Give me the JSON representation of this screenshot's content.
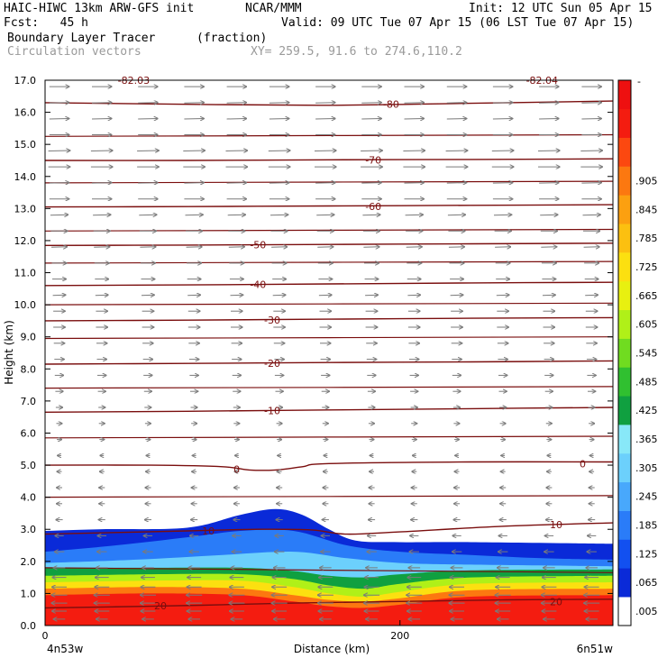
{
  "header": {
    "model_line": "HAIC-HIWC 13km ARW-GFS init",
    "org": "NCAR/MMM",
    "init": "Init: 12 UTC Sun 05 Apr 15",
    "fcst": "Fcst:   45 h",
    "valid": "Valid: 09 UTC Tue 07 Apr 15 (06 LST Tue 07 Apr 15)",
    "field": "Boundary Layer Tracer",
    "field_units": "(fraction)",
    "vectors": "Circulation vectors",
    "xy": "XY= 259.5, 91.6 to 274.6,110.2"
  },
  "chart_data": {
    "type": "heatmap",
    "xlabel": "Distance (km)",
    "ylabel": "Height (km)",
    "xlim": [
      0,
      320
    ],
    "ylim": [
      0.0,
      17.0
    ],
    "x_ticks": [
      {
        "value": 0,
        "label": "0"
      },
      {
        "value": 200,
        "label": "200"
      }
    ],
    "y_ticks": [
      {
        "value": 0.0,
        "label": "0.0"
      },
      {
        "value": 1.0,
        "label": "1.0"
      },
      {
        "value": 2.0,
        "label": "2.0"
      },
      {
        "value": 3.0,
        "label": "3.0"
      },
      {
        "value": 4.0,
        "label": "4.0"
      },
      {
        "value": 5.0,
        "label": "5.0"
      },
      {
        "value": 6.0,
        "label": "6.0"
      },
      {
        "value": 7.0,
        "label": "7.0"
      },
      {
        "value": 8.0,
        "label": "8.0"
      },
      {
        "value": 9.0,
        "label": "9.0"
      },
      {
        "value": 10.0,
        "label": "10.0"
      },
      {
        "value": 11.0,
        "label": "11.0"
      },
      {
        "value": 12.0,
        "label": "12.0"
      },
      {
        "value": 13.0,
        "label": "13.0"
      },
      {
        "value": 14.0,
        "label": "14.0"
      },
      {
        "value": 15.0,
        "label": "15.0"
      },
      {
        "value": 16.0,
        "label": "16.0"
      },
      {
        "value": 17.0,
        "label": "17.0"
      }
    ],
    "left_endpoint": "4n53w",
    "right_endpoint": "6n51w",
    "colorbar": {
      "labels": [
        ".005",
        ".065",
        ".125",
        ".185",
        ".245",
        ".305",
        ".365",
        ".425",
        ".485",
        ".545",
        ".605",
        ".665",
        ".725",
        ".785",
        ".845",
        ".905"
      ],
      "top_label": "-",
      "colors": [
        "#ffffff",
        "#0a2ad8",
        "#1250f0",
        "#2a7cf8",
        "#48a8fc",
        "#6cd0fc",
        "#88e8f8",
        "#10a040",
        "#30c030",
        "#70dc20",
        "#b0f018",
        "#e8f010",
        "#fce010",
        "#fcc010",
        "#fca010",
        "#fc7810",
        "#fc4810",
        "#f41c10",
        "#ee1010"
      ]
    },
    "tracer_layers": [
      {
        "value": 0.07,
        "color": "#0a2ad8",
        "top": [
          [
            0,
            2.95
          ],
          [
            30,
            3.0
          ],
          [
            80,
            3.05
          ],
          [
            110,
            3.45
          ],
          [
            130,
            3.63
          ],
          [
            145,
            3.45
          ],
          [
            160,
            3.0
          ],
          [
            175,
            2.65
          ],
          [
            200,
            2.6
          ],
          [
            240,
            2.6
          ],
          [
            320,
            2.55
          ]
        ]
      },
      {
        "value": 0.13,
        "color": "#2a7cf8",
        "top": [
          [
            0,
            2.3
          ],
          [
            40,
            2.5
          ],
          [
            80,
            2.75
          ],
          [
            110,
            2.95
          ],
          [
            140,
            2.95
          ],
          [
            170,
            2.5
          ],
          [
            200,
            2.3
          ],
          [
            240,
            2.2
          ],
          [
            280,
            2.1
          ],
          [
            320,
            2.05
          ]
        ]
      },
      {
        "value": 0.2,
        "color": "#6cd0fc",
        "top": [
          [
            0,
            1.95
          ],
          [
            50,
            2.05
          ],
          [
            100,
            2.2
          ],
          [
            140,
            2.3
          ],
          [
            170,
            2.1
          ],
          [
            200,
            1.95
          ],
          [
            240,
            1.9
          ],
          [
            320,
            1.85
          ]
        ]
      },
      {
        "value": 0.4,
        "color": "#10a040",
        "top": [
          [
            0,
            1.8
          ],
          [
            60,
            1.8
          ],
          [
            110,
            1.8
          ],
          [
            140,
            1.7
          ],
          [
            160,
            1.55
          ],
          [
            180,
            1.5
          ],
          [
            200,
            1.6
          ],
          [
            240,
            1.72
          ],
          [
            320,
            1.75
          ]
        ]
      },
      {
        "value": 0.55,
        "color": "#b0f018",
        "top": [
          [
            0,
            1.55
          ],
          [
            60,
            1.6
          ],
          [
            110,
            1.6
          ],
          [
            140,
            1.45
          ],
          [
            160,
            1.25
          ],
          [
            180,
            1.15
          ],
          [
            200,
            1.3
          ],
          [
            240,
            1.5
          ],
          [
            320,
            1.55
          ]
        ]
      },
      {
        "value": 0.7,
        "color": "#fce010",
        "top": [
          [
            0,
            1.35
          ],
          [
            60,
            1.4
          ],
          [
            110,
            1.4
          ],
          [
            140,
            1.2
          ],
          [
            160,
            1.0
          ],
          [
            180,
            0.9
          ],
          [
            200,
            1.05
          ],
          [
            240,
            1.3
          ],
          [
            320,
            1.35
          ]
        ]
      },
      {
        "value": 0.85,
        "color": "#fc7810",
        "top": [
          [
            0,
            1.15
          ],
          [
            60,
            1.2
          ],
          [
            110,
            1.15
          ],
          [
            140,
            0.95
          ],
          [
            160,
            0.8
          ],
          [
            180,
            0.75
          ],
          [
            200,
            0.85
          ],
          [
            240,
            1.1
          ],
          [
            320,
            1.15
          ]
        ]
      },
      {
        "value": 0.95,
        "color": "#f41c10",
        "top": [
          [
            0,
            0.95
          ],
          [
            60,
            1.0
          ],
          [
            110,
            0.95
          ],
          [
            140,
            0.75
          ],
          [
            160,
            0.6
          ],
          [
            180,
            0.55
          ],
          [
            200,
            0.65
          ],
          [
            240,
            0.9
          ],
          [
            320,
            0.95
          ]
        ]
      }
    ],
    "temperature_contours": [
      {
        "value": 20,
        "label": "20",
        "points": [
          [
            0,
            0.55
          ],
          [
            60,
            0.6
          ],
          [
            100,
            0.65
          ],
          [
            140,
            0.7
          ],
          [
            200,
            0.75
          ],
          [
            260,
            0.8
          ],
          [
            320,
            0.82
          ]
        ],
        "label_at": [
          [
            65,
            0.62
          ],
          [
            288,
            0.75
          ]
        ]
      },
      {
        "value": 10,
        "label": "10",
        "points": [
          [
            0,
            2.85
          ],
          [
            80,
            2.95
          ],
          [
            120,
            3.0
          ],
          [
            150,
            2.98
          ],
          [
            170,
            2.85
          ],
          [
            200,
            2.92
          ],
          [
            260,
            3.1
          ],
          [
            320,
            3.2
          ]
        ],
        "label_at": [
          [
            92,
            2.95
          ],
          [
            288,
            3.15
          ]
        ]
      },
      {
        "value": 0,
        "label": "0",
        "points": [
          [
            0,
            5.0
          ],
          [
            60,
            5.0
          ],
          [
            100,
            4.95
          ],
          [
            115,
            4.85
          ],
          [
            130,
            4.85
          ],
          [
            145,
            4.95
          ],
          [
            160,
            5.05
          ],
          [
            240,
            5.1
          ],
          [
            320,
            5.1
          ]
        ],
        "label_at": [
          [
            108,
            4.88
          ],
          [
            303,
            5.05
          ]
        ]
      },
      {
        "value": -10,
        "label": "-10",
        "points": [
          [
            0,
            6.65
          ],
          [
            80,
            6.68
          ],
          [
            160,
            6.72
          ],
          [
            240,
            6.76
          ],
          [
            320,
            6.8
          ]
        ],
        "label_at": [
          [
            128,
            6.7
          ]
        ]
      },
      {
        "value": -20,
        "label": "-20",
        "points": [
          [
            0,
            8.15
          ],
          [
            80,
            8.17
          ],
          [
            160,
            8.2
          ],
          [
            240,
            8.22
          ],
          [
            320,
            8.25
          ]
        ],
        "label_at": [
          [
            128,
            8.18
          ]
        ]
      },
      {
        "value": -30,
        "label": "-30",
        "points": [
          [
            0,
            9.5
          ],
          [
            80,
            9.52
          ],
          [
            160,
            9.55
          ],
          [
            240,
            9.58
          ],
          [
            320,
            9.6
          ]
        ],
        "label_at": [
          [
            128,
            9.53
          ]
        ]
      },
      {
        "value": -40,
        "label": "-40",
        "points": [
          [
            0,
            10.6
          ],
          [
            80,
            10.62
          ],
          [
            160,
            10.65
          ],
          [
            240,
            10.68
          ],
          [
            320,
            10.7
          ]
        ],
        "label_at": [
          [
            120,
            10.63
          ]
        ]
      },
      {
        "value": -50,
        "label": "-50",
        "points": [
          [
            0,
            11.85
          ],
          [
            80,
            11.86
          ],
          [
            160,
            11.88
          ],
          [
            240,
            11.9
          ],
          [
            320,
            11.92
          ]
        ],
        "label_at": [
          [
            120,
            11.87
          ]
        ]
      },
      {
        "value": -60,
        "label": "-60",
        "points": [
          [
            0,
            13.05
          ],
          [
            80,
            13.06
          ],
          [
            160,
            13.08
          ],
          [
            240,
            13.1
          ],
          [
            320,
            13.12
          ]
        ],
        "label_at": [
          [
            185,
            13.07
          ]
        ]
      },
      {
        "value": -70,
        "label": "-70",
        "points": [
          [
            0,
            14.5
          ],
          [
            80,
            14.5
          ],
          [
            160,
            14.52
          ],
          [
            240,
            14.53
          ],
          [
            320,
            14.55
          ]
        ],
        "label_at": [
          [
            185,
            14.52
          ]
        ]
      },
      {
        "value": -80,
        "label": "-80",
        "points": [
          [
            0,
            16.3
          ],
          [
            80,
            16.25
          ],
          [
            160,
            16.22
          ],
          [
            240,
            16.28
          ],
          [
            320,
            16.35
          ]
        ],
        "label_at": [
          [
            195,
            16.25
          ]
        ]
      }
    ],
    "extra_contours": [
      [
        [
          0,
          12.3
        ],
        [
          320,
          12.35
        ]
      ],
      [
        [
          0,
          13.8
        ],
        [
          320,
          13.85
        ]
      ],
      [
        [
          0,
          15.25
        ],
        [
          320,
          15.3
        ]
      ],
      [
        [
          0,
          11.3
        ],
        [
          320,
          11.35
        ]
      ],
      [
        [
          0,
          10.0
        ],
        [
          320,
          10.05
        ]
      ],
      [
        [
          0,
          8.95
        ],
        [
          320,
          9.0
        ]
      ],
      [
        [
          0,
          7.4
        ],
        [
          320,
          7.45
        ]
      ],
      [
        [
          0,
          5.85
        ],
        [
          320,
          5.9
        ]
      ],
      [
        [
          0,
          4.0
        ],
        [
          320,
          4.05
        ]
      ],
      [
        [
          0,
          1.8
        ],
        [
          320,
          1.65
        ]
      ]
    ],
    "top_labels": [
      {
        "text": "-82.03",
        "x": 50,
        "y": 17.0
      },
      {
        "text": "-82.04",
        "x": 280,
        "y": 17.0
      }
    ],
    "vectors": {
      "color": "#7a7a7a",
      "x_positions": [
        8,
        32,
        58,
        84,
        108,
        132,
        158,
        184,
        208,
        232,
        258,
        284,
        308
      ],
      "levels": [
        {
          "z": 16.8,
          "u": 1.0,
          "w": 0.0
        },
        {
          "z": 16.3,
          "u": 1.0,
          "w": 0.05
        },
        {
          "z": 15.8,
          "u": 1.0,
          "w": 0.05
        },
        {
          "z": 15.3,
          "u": 1.0,
          "w": 0.0
        },
        {
          "z": 14.8,
          "u": 1.1,
          "w": 0.05
        },
        {
          "z": 14.3,
          "u": 1.1,
          "w": 0.0
        },
        {
          "z": 13.8,
          "u": 1.0,
          "w": 0.05
        },
        {
          "z": 13.3,
          "u": 1.0,
          "w": 0.0
        },
        {
          "z": 12.8,
          "u": 0.9,
          "w": 0.05
        },
        {
          "z": 12.3,
          "u": 0.85,
          "w": 0.0
        },
        {
          "z": 11.8,
          "u": 0.8,
          "w": 0.05
        },
        {
          "z": 11.3,
          "u": 0.75,
          "w": 0.0
        },
        {
          "z": 10.8,
          "u": 0.7,
          "w": 0.0
        },
        {
          "z": 10.3,
          "u": 0.65,
          "w": 0.05
        },
        {
          "z": 9.8,
          "u": 0.6,
          "w": 0.0
        },
        {
          "z": 9.3,
          "u": 0.6,
          "w": 0.0
        },
        {
          "z": 8.8,
          "u": 0.55,
          "w": 0.0
        },
        {
          "z": 8.3,
          "u": 0.5,
          "w": 0.0
        },
        {
          "z": 7.8,
          "u": 0.45,
          "w": 0.0
        },
        {
          "z": 7.3,
          "u": 0.4,
          "w": 0.0
        },
        {
          "z": 6.8,
          "u": 0.35,
          "w": 0.0
        },
        {
          "z": 6.3,
          "u": 0.3,
          "w": 0.0
        },
        {
          "z": 5.8,
          "u": 0.25,
          "w": 0.0
        },
        {
          "z": 5.3,
          "u": -0.2,
          "w": 0.0
        },
        {
          "z": 4.8,
          "u": -0.25,
          "w": 0.0
        },
        {
          "z": 4.3,
          "u": -0.3,
          "w": 0.0
        },
        {
          "z": 3.8,
          "u": -0.3,
          "w": 0.0
        },
        {
          "z": 3.3,
          "u": -0.35,
          "w": 0.0
        },
        {
          "z": 2.8,
          "u": -0.45,
          "w": 0.0
        },
        {
          "z": 2.3,
          "u": -0.5,
          "w": 0.0
        },
        {
          "z": 1.8,
          "u": -0.6,
          "w": 0.0
        },
        {
          "z": 1.5,
          "u": -0.7,
          "w": 0.0
        },
        {
          "z": 1.2,
          "u": -0.75,
          "w": 0.0
        },
        {
          "z": 0.95,
          "u": -0.8,
          "w": 0.0
        },
        {
          "z": 0.7,
          "u": -0.8,
          "w": 0.0
        },
        {
          "z": 0.45,
          "u": -0.75,
          "w": 0.0
        },
        {
          "z": 0.2,
          "u": -0.6,
          "w": 0.0
        }
      ]
    }
  }
}
